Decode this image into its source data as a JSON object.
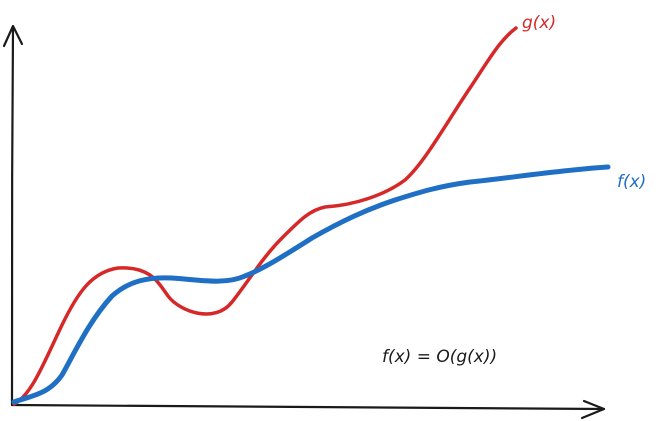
{
  "labels": {
    "g": "g(x)",
    "f": "f(x)",
    "equation": "f(x) = O(g(x))"
  },
  "colors": {
    "g_curve": "#d62828",
    "f_curve": "#1f6fc5",
    "axes": "#1a1a1a"
  }
}
